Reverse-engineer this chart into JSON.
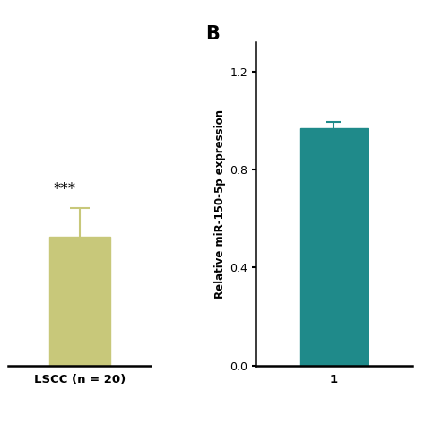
{
  "panel_A": {
    "bar_value": 0.5,
    "bar_error": 0.11,
    "bar_color": "#c8c87a",
    "error_color": "#c8c87a",
    "xlabel": "LSCC (n = 20)",
    "annotation": "***",
    "ylim": [
      0,
      1.25
    ],
    "yticks": []
  },
  "panel_B": {
    "label": "B",
    "bar_value": 0.97,
    "bar_error": 0.025,
    "bar_color": "#1f8a8a",
    "error_color": "#1f8a8a",
    "ylabel": "Relative miR-150-5p expression",
    "xlabel": "1",
    "ylim": [
      0,
      1.32
    ],
    "yticks": [
      0.0,
      0.4,
      0.8,
      1.2
    ],
    "ytick_labels": [
      "0.0",
      "0.4",
      "0.8",
      "1.2"
    ]
  },
  "background_color": "#ffffff",
  "axis_linewidth": 1.8,
  "bar_width": 0.6
}
